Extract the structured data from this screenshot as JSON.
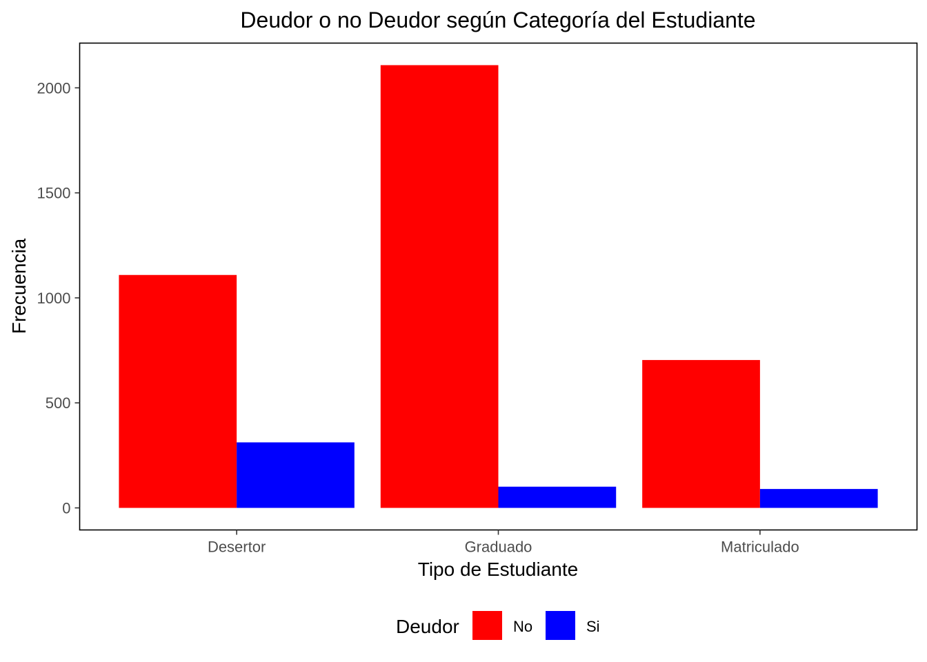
{
  "chart_data": {
    "type": "bar",
    "title": "Deudor o no Deudor según Categoría del Estudiante",
    "xlabel": "Tipo de Estudiante",
    "ylabel": "Frecuencia",
    "categories": [
      "Desertor",
      "Graduado",
      "Matriculado"
    ],
    "series": [
      {
        "name": "No",
        "color": "#ff0000",
        "values": [
          1109,
          2108,
          704
        ]
      },
      {
        "name": "Si",
        "color": "#0000ff",
        "values": [
          312,
          101,
          90
        ]
      }
    ],
    "ylim": [
      -105,
      2213
    ],
    "yticks": [
      0,
      500,
      1000,
      1500,
      2000
    ],
    "grid": false,
    "legend": {
      "title": "Deudor",
      "position": "bottom"
    }
  }
}
